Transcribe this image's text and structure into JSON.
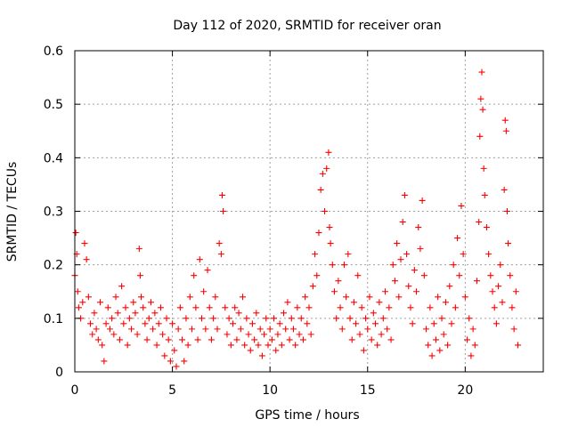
{
  "chart_data": {
    "type": "scatter",
    "title": "Day 112 of 2020, SRMTID for receiver oran",
    "xlabel": "GPS time / hours",
    "ylabel": "SRMTID / TECUs",
    "xlim": [
      0,
      24
    ],
    "ylim": [
      0,
      0.6
    ],
    "xticks": [
      0,
      5,
      10,
      15,
      20
    ],
    "xtick_labels": [
      "0",
      "5",
      "10",
      "15",
      "20"
    ],
    "yticks": [
      0,
      0.1,
      0.2,
      0.3,
      0.4,
      0.5,
      0.6
    ],
    "ytick_labels": [
      "0",
      "0.1",
      "0.2",
      "0.3",
      "0.4",
      "0.5",
      "0.6"
    ],
    "grid": true,
    "marker": "+",
    "marker_color": "#ff0000",
    "series": [
      {
        "name": "SRMTID",
        "points": [
          [
            0.0,
            0.18
          ],
          [
            0.05,
            0.26
          ],
          [
            0.1,
            0.22
          ],
          [
            0.15,
            0.15
          ],
          [
            0.2,
            0.12
          ],
          [
            0.3,
            0.1
          ],
          [
            0.4,
            0.13
          ],
          [
            0.5,
            0.24
          ],
          [
            0.6,
            0.21
          ],
          [
            0.7,
            0.14
          ],
          [
            0.8,
            0.09
          ],
          [
            0.9,
            0.07
          ],
          [
            1.0,
            0.11
          ],
          [
            1.1,
            0.08
          ],
          [
            1.2,
            0.06
          ],
          [
            1.3,
            0.13
          ],
          [
            1.4,
            0.05
          ],
          [
            1.5,
            0.02
          ],
          [
            1.6,
            0.09
          ],
          [
            1.7,
            0.12
          ],
          [
            1.8,
            0.08
          ],
          [
            1.9,
            0.1
          ],
          [
            2.0,
            0.07
          ],
          [
            2.1,
            0.14
          ],
          [
            2.2,
            0.11
          ],
          [
            2.3,
            0.06
          ],
          [
            2.4,
            0.16
          ],
          [
            2.5,
            0.09
          ],
          [
            2.6,
            0.12
          ],
          [
            2.7,
            0.05
          ],
          [
            2.8,
            0.1
          ],
          [
            2.9,
            0.08
          ],
          [
            3.0,
            0.13
          ],
          [
            3.1,
            0.11
          ],
          [
            3.2,
            0.07
          ],
          [
            3.3,
            0.23
          ],
          [
            3.35,
            0.18
          ],
          [
            3.4,
            0.14
          ],
          [
            3.5,
            0.12
          ],
          [
            3.6,
            0.09
          ],
          [
            3.7,
            0.06
          ],
          [
            3.8,
            0.1
          ],
          [
            3.9,
            0.13
          ],
          [
            4.0,
            0.08
          ],
          [
            4.1,
            0.11
          ],
          [
            4.2,
            0.05
          ],
          [
            4.3,
            0.09
          ],
          [
            4.4,
            0.12
          ],
          [
            4.5,
            0.07
          ],
          [
            4.6,
            0.03
          ],
          [
            4.7,
            0.1
          ],
          [
            4.8,
            0.06
          ],
          [
            4.9,
            0.02
          ],
          [
            5.0,
            0.09
          ],
          [
            5.1,
            0.04
          ],
          [
            5.2,
            0.01
          ],
          [
            5.3,
            0.08
          ],
          [
            5.4,
            0.12
          ],
          [
            5.5,
            0.06
          ],
          [
            5.6,
            0.02
          ],
          [
            5.7,
            0.1
          ],
          [
            5.8,
            0.05
          ],
          [
            5.9,
            0.14
          ],
          [
            6.0,
            0.08
          ],
          [
            6.1,
            0.18
          ],
          [
            6.2,
            0.12
          ],
          [
            6.3,
            0.06
          ],
          [
            6.4,
            0.21
          ],
          [
            6.5,
            0.1
          ],
          [
            6.6,
            0.15
          ],
          [
            6.7,
            0.08
          ],
          [
            6.8,
            0.19
          ],
          [
            6.9,
            0.12
          ],
          [
            7.0,
            0.06
          ],
          [
            7.1,
            0.1
          ],
          [
            7.2,
            0.14
          ],
          [
            7.3,
            0.08
          ],
          [
            7.4,
            0.24
          ],
          [
            7.5,
            0.22
          ],
          [
            7.55,
            0.33
          ],
          [
            7.6,
            0.3
          ],
          [
            7.7,
            0.12
          ],
          [
            7.8,
            0.07
          ],
          [
            7.9,
            0.1
          ],
          [
            8.0,
            0.05
          ],
          [
            8.1,
            0.09
          ],
          [
            8.2,
            0.12
          ],
          [
            8.3,
            0.06
          ],
          [
            8.4,
            0.11
          ],
          [
            8.5,
            0.08
          ],
          [
            8.6,
            0.14
          ],
          [
            8.7,
            0.05
          ],
          [
            8.8,
            0.1
          ],
          [
            8.9,
            0.07
          ],
          [
            9.0,
            0.04
          ],
          [
            9.1,
            0.09
          ],
          [
            9.2,
            0.06
          ],
          [
            9.3,
            0.11
          ],
          [
            9.4,
            0.05
          ],
          [
            9.5,
            0.08
          ],
          [
            9.6,
            0.03
          ],
          [
            9.7,
            0.07
          ],
          [
            9.8,
            0.1
          ],
          [
            9.9,
            0.05
          ],
          [
            10.0,
            0.08
          ],
          [
            10.1,
            0.06
          ],
          [
            10.2,
            0.1
          ],
          [
            10.3,
            0.04
          ],
          [
            10.4,
            0.07
          ],
          [
            10.5,
            0.09
          ],
          [
            10.6,
            0.05
          ],
          [
            10.7,
            0.11
          ],
          [
            10.8,
            0.08
          ],
          [
            10.9,
            0.13
          ],
          [
            11.0,
            0.06
          ],
          [
            11.1,
            0.1
          ],
          [
            11.2,
            0.08
          ],
          [
            11.3,
            0.05
          ],
          [
            11.4,
            0.12
          ],
          [
            11.5,
            0.07
          ],
          [
            11.6,
            0.1
          ],
          [
            11.7,
            0.06
          ],
          [
            11.8,
            0.14
          ],
          [
            11.9,
            0.09
          ],
          [
            12.0,
            0.12
          ],
          [
            12.1,
            0.07
          ],
          [
            12.2,
            0.16
          ],
          [
            12.3,
            0.22
          ],
          [
            12.4,
            0.18
          ],
          [
            12.5,
            0.26
          ],
          [
            12.6,
            0.34
          ],
          [
            12.7,
            0.37
          ],
          [
            12.8,
            0.3
          ],
          [
            12.9,
            0.38
          ],
          [
            13.0,
            0.41
          ],
          [
            13.05,
            0.27
          ],
          [
            13.1,
            0.24
          ],
          [
            13.2,
            0.2
          ],
          [
            13.3,
            0.15
          ],
          [
            13.4,
            0.1
          ],
          [
            13.5,
            0.17
          ],
          [
            13.6,
            0.12
          ],
          [
            13.7,
            0.08
          ],
          [
            13.8,
            0.2
          ],
          [
            13.9,
            0.14
          ],
          [
            14.0,
            0.22
          ],
          [
            14.1,
            0.1
          ],
          [
            14.2,
            0.06
          ],
          [
            14.3,
            0.13
          ],
          [
            14.4,
            0.09
          ],
          [
            14.5,
            0.18
          ],
          [
            14.6,
            0.07
          ],
          [
            14.7,
            0.12
          ],
          [
            14.8,
            0.04
          ],
          [
            14.9,
            0.1
          ],
          [
            15.0,
            0.08
          ],
          [
            15.1,
            0.14
          ],
          [
            15.2,
            0.06
          ],
          [
            15.3,
            0.11
          ],
          [
            15.4,
            0.09
          ],
          [
            15.5,
            0.05
          ],
          [
            15.6,
            0.13
          ],
          [
            15.7,
            0.07
          ],
          [
            15.8,
            0.1
          ],
          [
            15.9,
            0.15
          ],
          [
            16.0,
            0.08
          ],
          [
            16.1,
            0.12
          ],
          [
            16.2,
            0.06
          ],
          [
            16.3,
            0.2
          ],
          [
            16.4,
            0.17
          ],
          [
            16.5,
            0.24
          ],
          [
            16.6,
            0.14
          ],
          [
            16.7,
            0.21
          ],
          [
            16.8,
            0.28
          ],
          [
            16.9,
            0.33
          ],
          [
            17.0,
            0.22
          ],
          [
            17.1,
            0.16
          ],
          [
            17.2,
            0.12
          ],
          [
            17.3,
            0.09
          ],
          [
            17.4,
            0.19
          ],
          [
            17.5,
            0.15
          ],
          [
            17.6,
            0.27
          ],
          [
            17.7,
            0.23
          ],
          [
            17.8,
            0.32
          ],
          [
            17.9,
            0.18
          ],
          [
            18.0,
            0.08
          ],
          [
            18.1,
            0.05
          ],
          [
            18.2,
            0.12
          ],
          [
            18.3,
            0.03
          ],
          [
            18.4,
            0.09
          ],
          [
            18.5,
            0.06
          ],
          [
            18.6,
            0.14
          ],
          [
            18.7,
            0.04
          ],
          [
            18.8,
            0.1
          ],
          [
            18.9,
            0.07
          ],
          [
            19.0,
            0.13
          ],
          [
            19.1,
            0.05
          ],
          [
            19.2,
            0.16
          ],
          [
            19.3,
            0.09
          ],
          [
            19.4,
            0.2
          ],
          [
            19.5,
            0.12
          ],
          [
            19.6,
            0.25
          ],
          [
            19.7,
            0.18
          ],
          [
            19.8,
            0.31
          ],
          [
            19.9,
            0.22
          ],
          [
            20.0,
            0.14
          ],
          [
            20.1,
            0.06
          ],
          [
            20.2,
            0.1
          ],
          [
            20.3,
            0.03
          ],
          [
            20.4,
            0.08
          ],
          [
            20.5,
            0.05
          ],
          [
            20.6,
            0.17
          ],
          [
            20.7,
            0.28
          ],
          [
            20.75,
            0.44
          ],
          [
            20.8,
            0.51
          ],
          [
            20.85,
            0.56
          ],
          [
            20.9,
            0.49
          ],
          [
            20.95,
            0.38
          ],
          [
            21.0,
            0.33
          ],
          [
            21.1,
            0.27
          ],
          [
            21.2,
            0.22
          ],
          [
            21.3,
            0.18
          ],
          [
            21.4,
            0.15
          ],
          [
            21.5,
            0.12
          ],
          [
            21.6,
            0.09
          ],
          [
            21.7,
            0.16
          ],
          [
            21.8,
            0.2
          ],
          [
            21.9,
            0.13
          ],
          [
            22.0,
            0.34
          ],
          [
            22.05,
            0.47
          ],
          [
            22.1,
            0.45
          ],
          [
            22.15,
            0.3
          ],
          [
            22.2,
            0.24
          ],
          [
            22.3,
            0.18
          ],
          [
            22.4,
            0.12
          ],
          [
            22.5,
            0.08
          ],
          [
            22.6,
            0.15
          ],
          [
            22.7,
            0.05
          ]
        ]
      }
    ]
  }
}
